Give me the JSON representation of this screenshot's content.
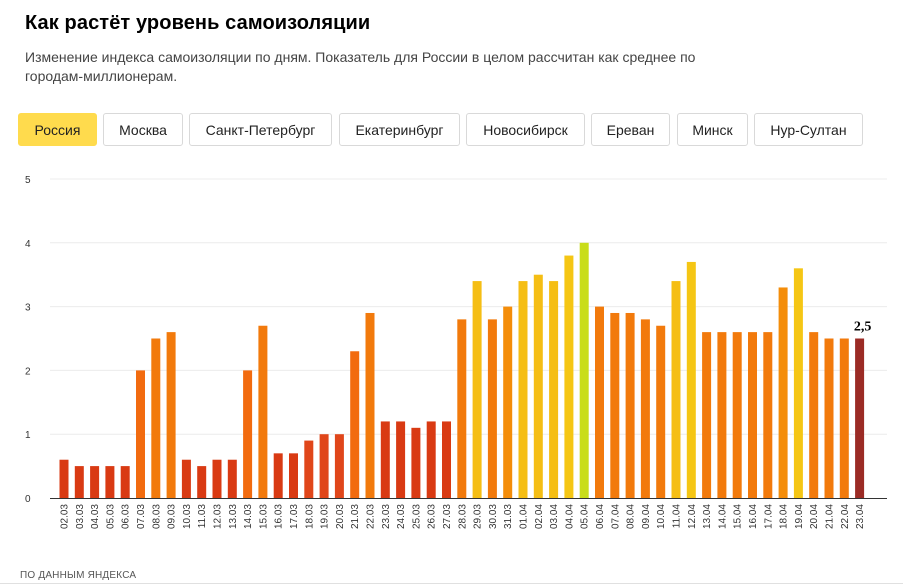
{
  "header": {
    "title": "Как растёт уровень самоизоляции",
    "subtitle": "Изменение индекса самоизоляции по дням. Показатель для России в целом рассчитан как среднее по городам-миллионерам."
  },
  "tabs": [
    {
      "label": "Россия",
      "active": true
    },
    {
      "label": "Москва",
      "active": false
    },
    {
      "label": "Санкт-Петербург",
      "active": false
    },
    {
      "label": "Екатеринбург",
      "active": false
    },
    {
      "label": "Новосибирск",
      "active": false
    },
    {
      "label": "Ереван",
      "active": false
    },
    {
      "label": "Минск",
      "active": false
    },
    {
      "label": "Нур-Султан",
      "active": false
    }
  ],
  "footer": {
    "source": "ПО ДАННЫМ ЯНДЕКСА"
  },
  "chart_data": {
    "type": "bar",
    "title": "",
    "xlabel": "",
    "ylabel": "",
    "ylim": [
      0,
      5
    ],
    "yticks": [
      0,
      1,
      2,
      3,
      4,
      5
    ],
    "grid": true,
    "categories": [
      "02.03",
      "03.03",
      "04.03",
      "05.03",
      "06.03",
      "07.03",
      "08.03",
      "09.03",
      "10.03",
      "11.03",
      "12.03",
      "13.03",
      "14.03",
      "15.03",
      "16.03",
      "17.03",
      "18.03",
      "19.03",
      "20.03",
      "21.03",
      "22.03",
      "23.03",
      "24.03",
      "25.03",
      "26.03",
      "27.03",
      "28.03",
      "29.03",
      "30.03",
      "31.03",
      "01.04",
      "02.04",
      "03.04",
      "04.04",
      "05.04",
      "06.04",
      "07.04",
      "08.04",
      "09.04",
      "10.04",
      "11.04",
      "12.04",
      "13.04",
      "14.04",
      "15.04",
      "16.04",
      "17.04",
      "18.04",
      "19.04",
      "20.04",
      "21.04",
      "22.04",
      "23.04"
    ],
    "values": [
      0.6,
      0.5,
      0.5,
      0.5,
      0.5,
      2.0,
      2.5,
      2.6,
      0.6,
      0.5,
      0.6,
      0.6,
      2.0,
      2.7,
      0.7,
      0.7,
      0.9,
      1.0,
      1.0,
      2.3,
      2.9,
      1.2,
      1.2,
      1.1,
      1.2,
      1.2,
      2.8,
      3.4,
      2.8,
      3.0,
      3.4,
      3.5,
      3.4,
      3.8,
      4.0,
      3.0,
      2.9,
      2.9,
      2.8,
      2.7,
      3.4,
      3.7,
      2.6,
      2.6,
      2.6,
      2.6,
      2.6,
      3.3,
      3.6,
      2.6,
      2.5,
      2.5,
      2.5
    ],
    "colors": [
      "#d93a13",
      "#d93a13",
      "#d93a13",
      "#d93a13",
      "#d93a13",
      "#f26b0f",
      "#f27a0c",
      "#f27a0c",
      "#d93a13",
      "#d93a13",
      "#d93a13",
      "#d93a13",
      "#f26b0f",
      "#f27a0c",
      "#d93a13",
      "#d93a13",
      "#e0461a",
      "#e0461a",
      "#e0461a",
      "#f26b0f",
      "#f27a0c",
      "#d93a13",
      "#d93a13",
      "#d93a13",
      "#d93a13",
      "#d93a13",
      "#f27a0c",
      "#f5be14",
      "#f27a0c",
      "#f48d0a",
      "#f5be14",
      "#f5be14",
      "#f5be14",
      "#f5c614",
      "#c9dd1a",
      "#f27a0c",
      "#f27a0c",
      "#f27a0c",
      "#f27a0c",
      "#f27a0c",
      "#f5be14",
      "#f5c614",
      "#f27a0c",
      "#f27a0c",
      "#f27a0c",
      "#f27a0c",
      "#f27a0c",
      "#f48d0a",
      "#f5c614",
      "#f27a0c",
      "#f27a0c",
      "#f27a0c",
      "#9b2b25"
    ],
    "annotation": {
      "category": "23.04",
      "text": "2,5"
    }
  }
}
